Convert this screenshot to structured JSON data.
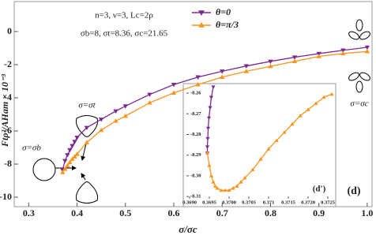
{
  "chart_data": [
    {
      "type": "line",
      "xlabel": "σ/σc",
      "ylabel": "Ftρ²/AHam × 10⁻³",
      "xlim": [
        0.27,
        1.01
      ],
      "ylim": [
        -10.57,
        1.81
      ],
      "xticks": [
        0.3,
        0.4,
        0.5,
        0.6,
        0.7,
        0.8,
        0.9,
        {
          "value": 1.0,
          "label": "1.0"
        }
      ],
      "yticks": [
        0,
        -2,
        -4,
        -6,
        -8,
        -10
      ],
      "legend": "upper center",
      "annotations": [
        "n=3, ν=3, Lc=2ρ",
        "σb=8, σt=8.36, σc=21.65",
        "σ=σt",
        "σ=σb",
        "σ=σc",
        "(d)"
      ],
      "x": [
        0.37,
        0.375,
        0.38,
        0.385,
        0.39,
        0.395,
        0.4,
        0.42,
        0.45,
        0.48,
        0.5,
        0.55,
        0.6,
        0.65,
        0.7,
        0.75,
        0.8,
        0.85,
        0.9,
        0.95,
        1.0
      ],
      "series": [
        {
          "name": "θ=0",
          "color": "#7b2a8f",
          "marker": "triangle-down",
          "values": [
            -8.35,
            -7.8,
            -7.45,
            -7.15,
            -6.9,
            -6.65,
            -6.4,
            -5.8,
            -5.3,
            -4.8,
            -4.5,
            -3.8,
            -3.2,
            -2.75,
            -2.4,
            -2.08,
            -1.8,
            -1.55,
            -1.33,
            -1.13,
            -0.95
          ]
        },
        {
          "name": "θ=π/3",
          "color": "#f7941d",
          "marker": "triangle-up",
          "values": [
            -8.5,
            -8.3,
            -8.1,
            -7.9,
            -7.7,
            -7.55,
            -7.4,
            -6.7,
            -5.95,
            -5.4,
            -5.1,
            -4.3,
            -3.7,
            -3.2,
            -2.75,
            -2.4,
            -2.1,
            -1.8,
            -1.5,
            -1.33,
            -1.2
          ]
        }
      ]
    },
    {
      "type": "line",
      "xlim": [
        0.36892,
        0.3727
      ],
      "ylim": [
        -8.3111,
        -8.2554
      ],
      "xticks": [
        {
          "value": 0.369,
          "label": "0.3690"
        },
        0.3695,
        {
          "value": 0.37,
          "label": "0.3700"
        },
        0.3705,
        0.371,
        0.3715,
        {
          "value": 0.372,
          "label": "0.3720"
        },
        0.3725
      ],
      "yticks": [
        -8.26,
        -8.27,
        -8.28,
        -8.29,
        {
          "value": -8.3,
          "label": "-8.30"
        },
        -8.31
      ],
      "annotations": [
        "(d')"
      ],
      "series": [
        {
          "color": "#7b2a8f",
          "marker": "triangle-down",
          "x": [
            0.3696,
            0.36955,
            0.36952,
            0.36949,
            0.36947,
            0.36946,
            0.36945,
            0.36945
          ],
          "values": [
            -8.257,
            -8.262,
            -8.267,
            -8.272,
            -8.277,
            -8.282,
            -8.286,
            -8.289
          ]
        },
        {
          "color": "#f7941d",
          "marker": "triangle-up",
          "x": [
            0.36945,
            0.3695,
            0.36955,
            0.3696,
            0.36965,
            0.3697,
            0.3698,
            0.3699,
            0.37,
            0.3701,
            0.3702,
            0.3703,
            0.3704,
            0.3706,
            0.3708,
            0.371,
            0.3712,
            0.3714,
            0.3716,
            0.3718,
            0.372,
            0.3722,
            0.3724,
            0.3726
          ],
          "values": [
            -8.289,
            -8.295,
            -8.3,
            -8.303,
            -8.305,
            -8.306,
            -8.307,
            -8.307,
            -8.307,
            -8.306,
            -8.305,
            -8.303,
            -8.301,
            -8.297,
            -8.292,
            -8.287,
            -8.283,
            -8.279,
            -8.275,
            -8.271,
            -8.268,
            -8.265,
            -8.262,
            -8.2605
          ]
        }
      ]
    }
  ]
}
